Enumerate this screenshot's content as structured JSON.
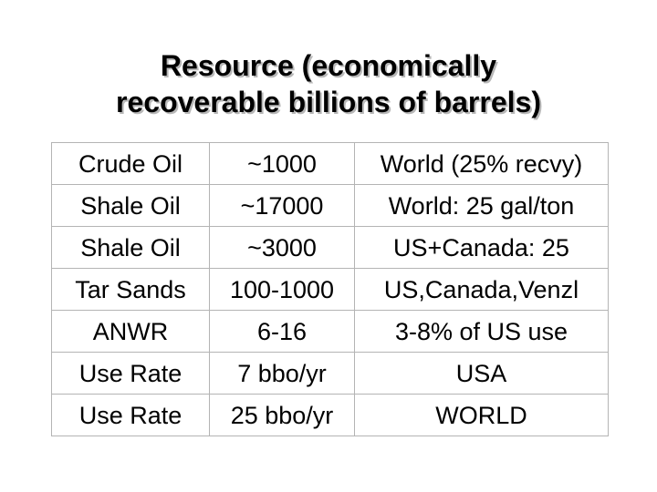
{
  "title": {
    "line1": "Resource (economically",
    "line2": "recoverable billions of barrels)"
  },
  "table": {
    "rows": [
      [
        "Crude Oil",
        "~1000",
        "World (25% recvy)"
      ],
      [
        "Shale Oil",
        "~17000",
        "World: 25 gal/ton"
      ],
      [
        "Shale Oil",
        "~3000",
        "US+Canada: 25"
      ],
      [
        "Tar Sands",
        "100-1000",
        "US,Canada,Venzl"
      ],
      [
        "ANWR",
        "6-16",
        "3-8% of US use"
      ],
      [
        "Use Rate",
        "7 bbo/yr",
        "USA"
      ],
      [
        "Use Rate",
        "25 bbo/yr",
        "WORLD"
      ]
    ]
  }
}
